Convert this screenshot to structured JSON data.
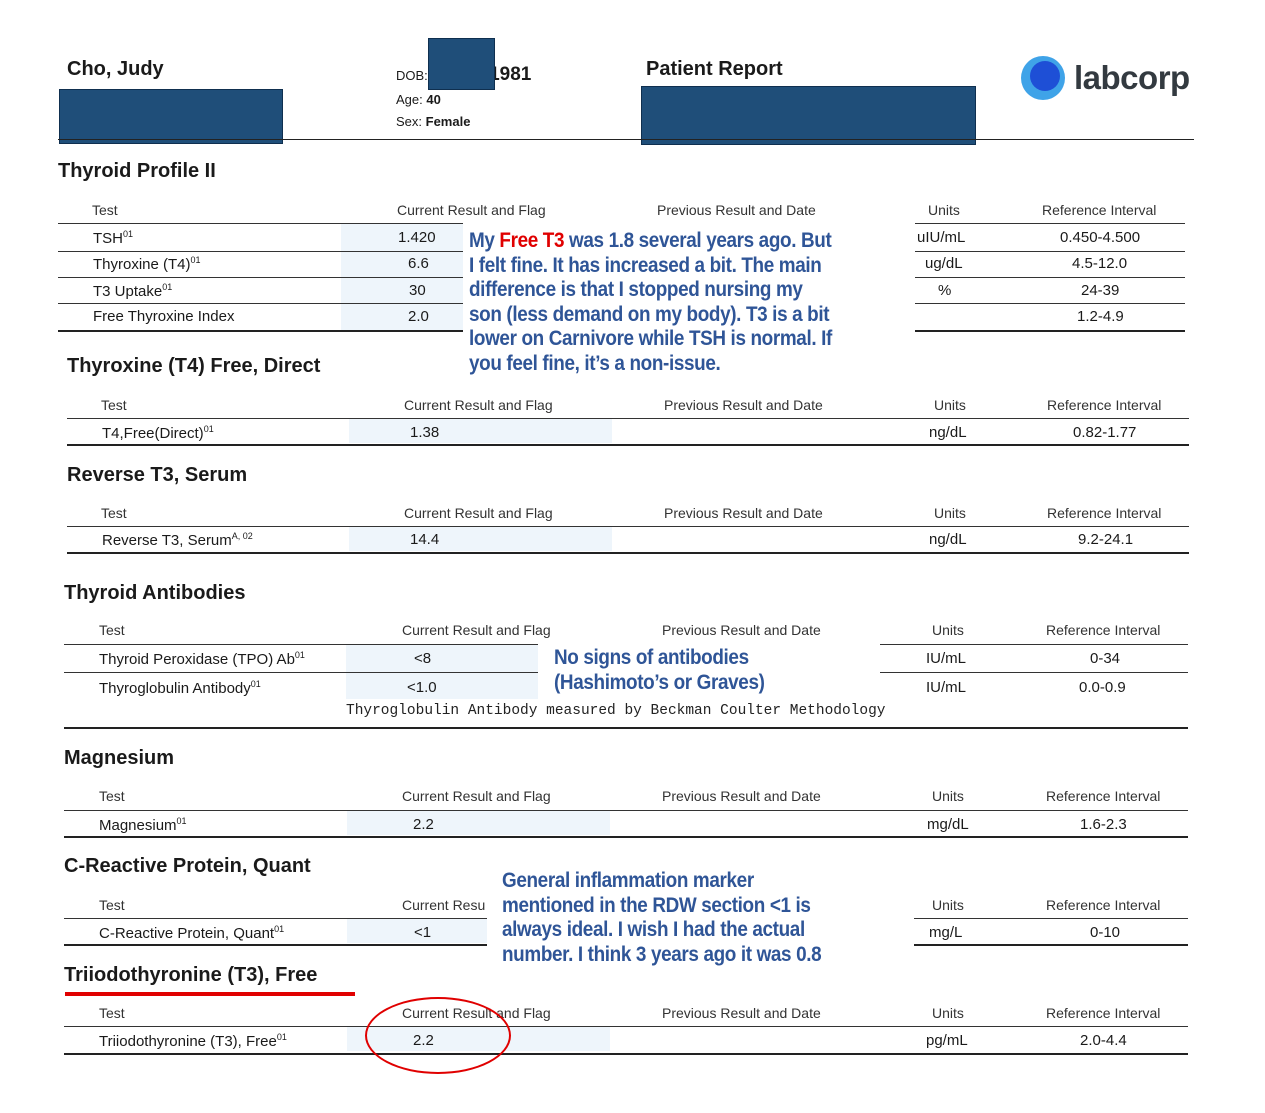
{
  "header": {
    "patient_name": "Cho, Judy",
    "dob_label": "DOB:",
    "dob_year": "/1981",
    "age_label": "Age:",
    "age_value": "40",
    "sex_label": "Sex:",
    "sex_value": "Female",
    "report_title": "Patient Report",
    "logo_text": "labcorp"
  },
  "columns": {
    "test": "Test",
    "current": "Current Result and Flag",
    "previous": "Previous Result and Date",
    "units": "Units",
    "reference": "Reference Interval",
    "current_truncated": "Current Resu"
  },
  "sections": {
    "thyroid_profile": {
      "title": "Thyroid Profile II",
      "rows": [
        {
          "test": "TSH",
          "sup": "01",
          "result": "1.420",
          "units": "uIU/mL",
          "ref": "0.450-4.500"
        },
        {
          "test": "Thyroxine (T4)",
          "sup": "01",
          "result": "6.6",
          "units": "ug/dL",
          "ref": "4.5-12.0"
        },
        {
          "test": "T3 Uptake",
          "sup": "01",
          "result": "30",
          "units": "%",
          "ref": "24-39"
        },
        {
          "test": "Free Thyroxine Index",
          "sup": "",
          "result": "2.0",
          "units": "",
          "ref": "1.2-4.9"
        }
      ]
    },
    "t4_free": {
      "title": "Thyroxine (T4) Free, Direct",
      "rows": [
        {
          "test": "T4,Free(Direct)",
          "sup": "01",
          "result": "1.38",
          "units": "ng/dL",
          "ref": "0.82-1.77"
        }
      ]
    },
    "reverse_t3": {
      "title": "Reverse T3, Serum",
      "rows": [
        {
          "test": "Reverse T3, Serum",
          "sup": "A, 02",
          "result": "14.4",
          "units": "ng/dL",
          "ref": "9.2-24.1"
        }
      ]
    },
    "antibodies": {
      "title": "Thyroid Antibodies",
      "rows": [
        {
          "test": "Thyroid Peroxidase (TPO) Ab",
          "sup": "01",
          "result": "<8",
          "units": "IU/mL",
          "ref": "0-34"
        },
        {
          "test": "Thyroglobulin Antibody",
          "sup": "01",
          "result": "<1.0",
          "units": "IU/mL",
          "ref": "0.0-0.9"
        }
      ],
      "method_note": "Thyroglobulin Antibody measured by Beckman Coulter Methodology"
    },
    "magnesium": {
      "title": "Magnesium",
      "rows": [
        {
          "test": "Magnesium",
          "sup": "01",
          "result": "2.2",
          "units": "mg/dL",
          "ref": "1.6-2.3"
        }
      ]
    },
    "crp": {
      "title": "C-Reactive Protein, Quant",
      "rows": [
        {
          "test": "C-Reactive Protein, Quant",
          "sup": "01",
          "result": "<1",
          "units": "mg/L",
          "ref": "0-10"
        }
      ]
    },
    "t3_free": {
      "title": "Triiodothyronine (T3), Free",
      "rows": [
        {
          "test": "Triiodothyronine (T3), Free",
          "sup": "01",
          "result": "2.2",
          "units": "pg/mL",
          "ref": "2.0-4.4"
        }
      ]
    }
  },
  "annotations": {
    "t3_note_lines": [
      "was 1.8 several years ago. But",
      "I felt fine. It has increased a bit. The main",
      "difference is that I stopped nursing my",
      "son (less demand on my body). T3 is a bit",
      "lower on Carnivore while TSH is normal. If",
      "you feel fine, it’s a non-issue."
    ],
    "t3_note_prefix": "My",
    "t3_note_highlight": "Free T3",
    "antibody_note_lines": [
      "No signs of antibodies",
      "(Hashimoto’s or Graves)"
    ],
    "crp_note_lines": [
      "General inflammation marker",
      "mentioned in the RDW section <1 is",
      "always ideal. I wish I had the actual",
      "number.  I think 3 years ago it was 0.8"
    ]
  },
  "colors": {
    "redaction": "#1f4e79",
    "note_blue": "#2f5597",
    "highlight_red": "#e00000",
    "result_cell_bg": "#eef5fb"
  }
}
